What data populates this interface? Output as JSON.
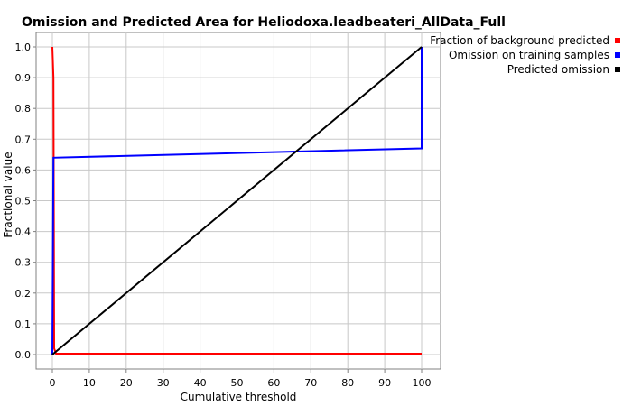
{
  "chart_data": {
    "type": "line",
    "title": "Omission and Predicted Area for Heliodoxa.leadbeateri_AllData_Full",
    "xlabel": "Cumulative threshold",
    "ylabel": "Fractional value",
    "xlim": [
      0,
      100
    ],
    "ylim": [
      0,
      1
    ],
    "x_ticks": [
      0,
      10,
      20,
      30,
      40,
      50,
      60,
      70,
      80,
      90,
      100
    ],
    "y_ticks": [
      0.0,
      0.1,
      0.2,
      0.3,
      0.4,
      0.5,
      0.6,
      0.7,
      0.8,
      0.9,
      1.0
    ],
    "x_tick_labels": [
      "0",
      "10",
      "20",
      "30",
      "40",
      "50",
      "60",
      "70",
      "80",
      "90",
      "100"
    ],
    "y_tick_labels": [
      "0.0",
      "0.1",
      "0.2",
      "0.3",
      "0.4",
      "0.5",
      "0.6",
      "0.7",
      "0.8",
      "0.9",
      "1.0"
    ],
    "grid": true,
    "legend_position": "top-right, outside plot",
    "series": [
      {
        "name": "Fraction of background predicted",
        "color": "#ff0000",
        "x": [
          0,
          0.3,
          0.5,
          1,
          100
        ],
        "y": [
          1.0,
          0.9,
          0.02,
          0.003,
          0.003
        ]
      },
      {
        "name": "Omission on training samples",
        "color": "#0000ff",
        "x": [
          0,
          0.3,
          100,
          100
        ],
        "y": [
          0.0,
          0.64,
          0.67,
          1.0
        ]
      },
      {
        "name": "Predicted omission",
        "color": "#000000",
        "x": [
          0,
          100
        ],
        "y": [
          0,
          1.0
        ]
      }
    ]
  }
}
